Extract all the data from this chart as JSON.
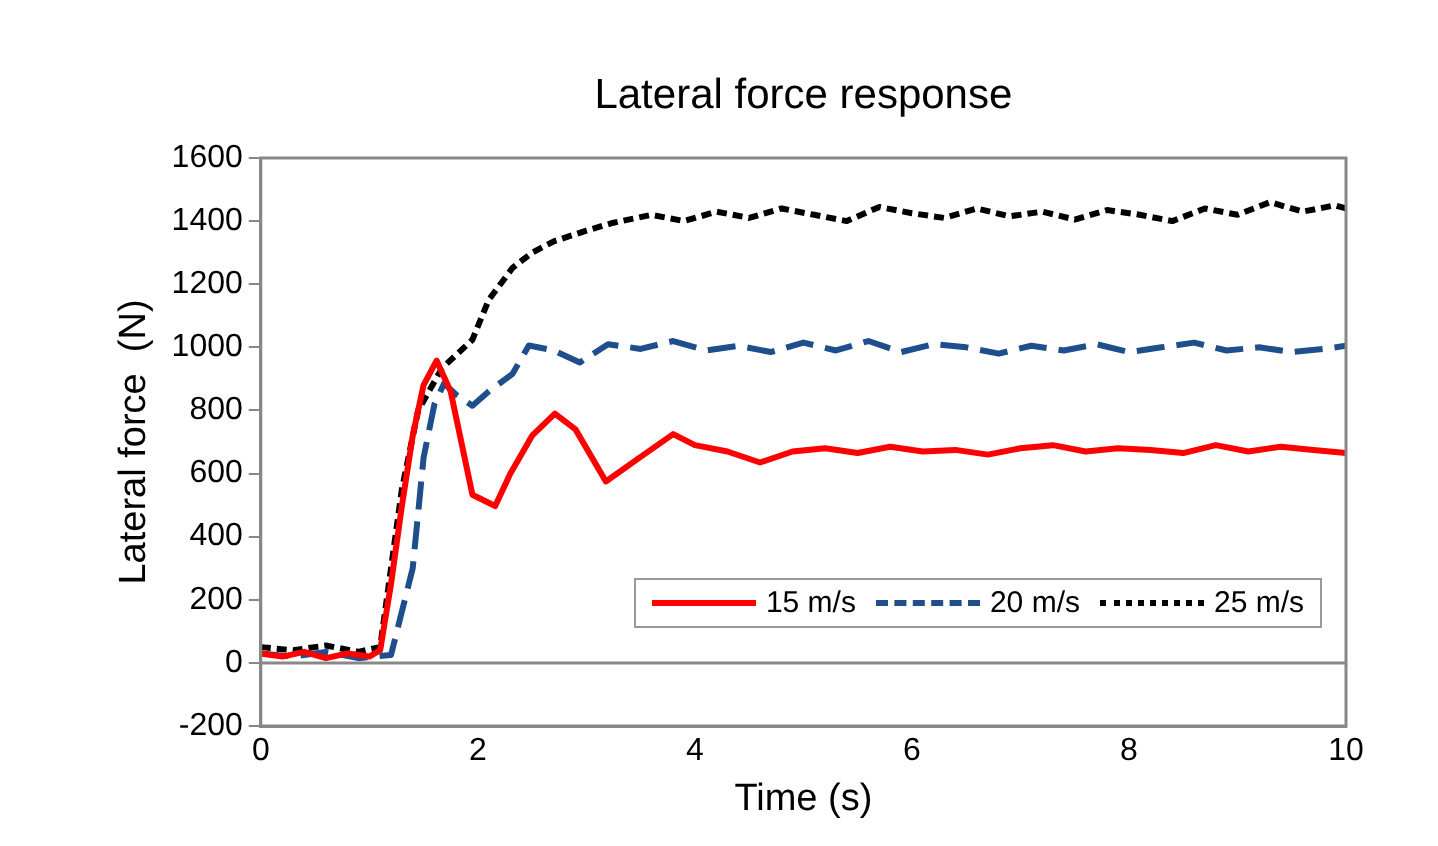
{
  "chart_data": {
    "type": "line",
    "title": "Lateral force response",
    "xlabel": "Time (s)",
    "ylabel": "Lateral force  (N)",
    "xlim": [
      0,
      10
    ],
    "xticks": [
      0,
      2,
      4,
      6,
      8,
      10
    ],
    "ylim": [
      -200,
      1600
    ],
    "yticks": [
      -200,
      0,
      200,
      400,
      600,
      800,
      1000,
      1200,
      1400,
      1600
    ],
    "grid": false,
    "legend": "bottom right",
    "ref_lines": [
      {
        "axis": "y",
        "value": 0,
        "color": "#888888"
      }
    ],
    "marker": "none",
    "series": [
      {
        "name": "15 m/s",
        "color": "#ff0000",
        "line_style": "solid",
        "x": [
          0,
          0.2,
          0.4,
          0.6,
          0.8,
          1.0,
          1.1,
          1.2,
          1.3,
          1.4,
          1.5,
          1.62,
          1.75,
          1.95,
          2.16,
          2.3,
          2.5,
          2.71,
          2.9,
          3.18,
          3.5,
          3.8,
          4.0,
          4.3,
          4.6,
          4.9,
          5.2,
          5.5,
          5.8,
          6.1,
          6.4,
          6.7,
          7.0,
          7.3,
          7.6,
          7.9,
          8.2,
          8.5,
          8.8,
          9.1,
          9.4,
          9.7,
          10
        ],
        "values": [
          30,
          20,
          35,
          15,
          30,
          20,
          40,
          250,
          497,
          720,
          880,
          958,
          860,
          533,
          497,
          600,
          720,
          790,
          740,
          575,
          653,
          725,
          690,
          670,
          635,
          670,
          680,
          665,
          685,
          670,
          675,
          660,
          680,
          690,
          670,
          680,
          675,
          665,
          690,
          670,
          685,
          675,
          665
        ]
      },
      {
        "name": "20 m/s",
        "color": "#1f4e8c",
        "line_style": "dashed",
        "x": [
          0,
          0.3,
          0.6,
          0.9,
          1.2,
          1.4,
          1.5,
          1.6,
          1.69,
          1.8,
          1.95,
          2.1,
          2.32,
          2.47,
          2.7,
          2.94,
          3.2,
          3.5,
          3.8,
          4.1,
          4.4,
          4.7,
          5.0,
          5.3,
          5.6,
          5.9,
          6.2,
          6.5,
          6.8,
          7.1,
          7.4,
          7.7,
          8.0,
          8.3,
          8.6,
          8.9,
          9.2,
          9.5,
          9.8,
          10
        ],
        "values": [
          30,
          20,
          35,
          15,
          25,
          300,
          650,
          820,
          886,
          850,
          815,
          860,
          916,
          1006,
          990,
          952,
          1010,
          995,
          1020,
          990,
          1005,
          985,
          1015,
          990,
          1020,
          985,
          1010,
          1000,
          980,
          1005,
          990,
          1010,
          985,
          1000,
          1015,
          990,
          1000,
          985,
          995,
          1005
        ]
      },
      {
        "name": "25 m/s",
        "color": "#000000",
        "line_style": "dotted",
        "x": [
          0,
          0.3,
          0.6,
          0.9,
          1.1,
          1.2,
          1.3,
          1.45,
          1.67,
          1.95,
          2.1,
          2.32,
          2.5,
          2.7,
          3.0,
          3.25,
          3.6,
          3.9,
          4.2,
          4.5,
          4.8,
          5.1,
          5.4,
          5.7,
          6.0,
          6.3,
          6.6,
          6.9,
          7.2,
          7.5,
          7.8,
          8.1,
          8.4,
          8.7,
          9.0,
          9.3,
          9.6,
          9.9,
          10
        ],
        "values": [
          50,
          40,
          55,
          35,
          50,
          300,
          550,
          800,
          934,
          1024,
          1150,
          1252,
          1300,
          1336,
          1370,
          1395,
          1420,
          1400,
          1430,
          1410,
          1440,
          1420,
          1400,
          1445,
          1425,
          1410,
          1440,
          1415,
          1430,
          1405,
          1435,
          1420,
          1400,
          1440,
          1420,
          1460,
          1430,
          1450,
          1440
        ]
      }
    ]
  }
}
